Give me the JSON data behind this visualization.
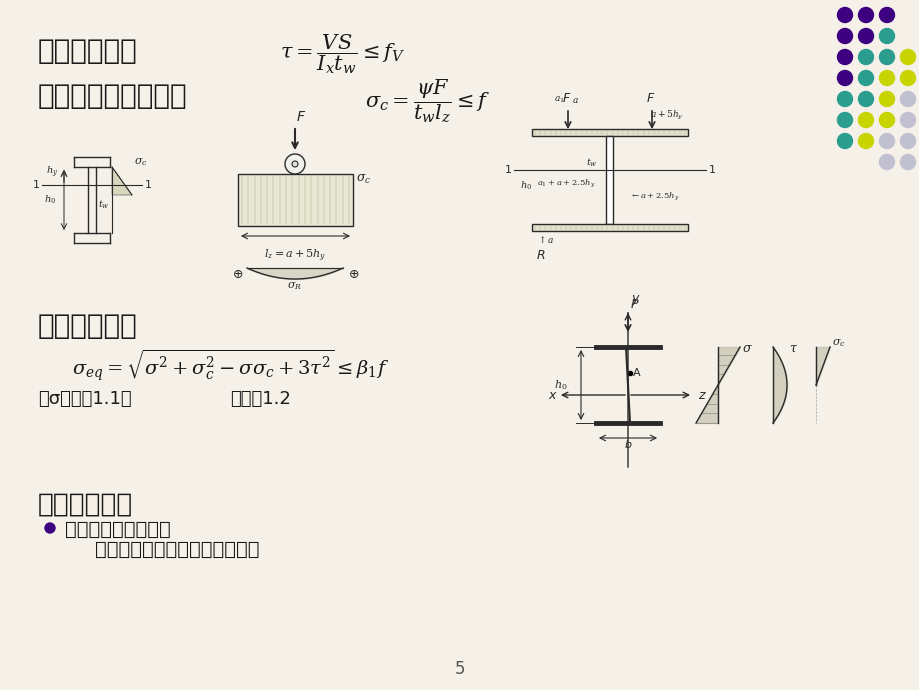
{
  "bg_color": "#f5f0e8",
  "dot_colors": {
    "purple": "#3d0080",
    "teal": "#2a9d8f",
    "yellow_green": "#c8d400",
    "light_gray": "#c0c0d0"
  },
  "dot_grid": [
    [
      "purple",
      "purple",
      "purple",
      "none"
    ],
    [
      "purple",
      "purple",
      "teal",
      "none"
    ],
    [
      "purple",
      "teal",
      "teal",
      "yellow_green"
    ],
    [
      "purple",
      "teal",
      "yellow_green",
      "yellow_green"
    ],
    [
      "teal",
      "teal",
      "yellow_green",
      "light_gray"
    ],
    [
      "teal",
      "yellow_green",
      "yellow_green",
      "light_gray"
    ],
    [
      "teal",
      "yellow_green",
      "light_gray",
      "light_gray"
    ],
    [
      "none",
      "none",
      "light_gray",
      "light_gray"
    ]
  ],
  "text_color": "#1a1a1a",
  "bullet_color": "#3d0080",
  "section2_title": "二、抗剪强度",
  "section3_title": "三、腹板局部压应力",
  "section4_title": "四、折算应力",
  "section5_title": "五、梁的刚度",
  "bullet1": "控制梁的挠跨比小于",
  "bullet2": "规定的限制（为变形量的限制）",
  "sigma_text": "两σ同号取1.1，",
  "sigma_text2": "异号取1.2",
  "page_num": "5"
}
